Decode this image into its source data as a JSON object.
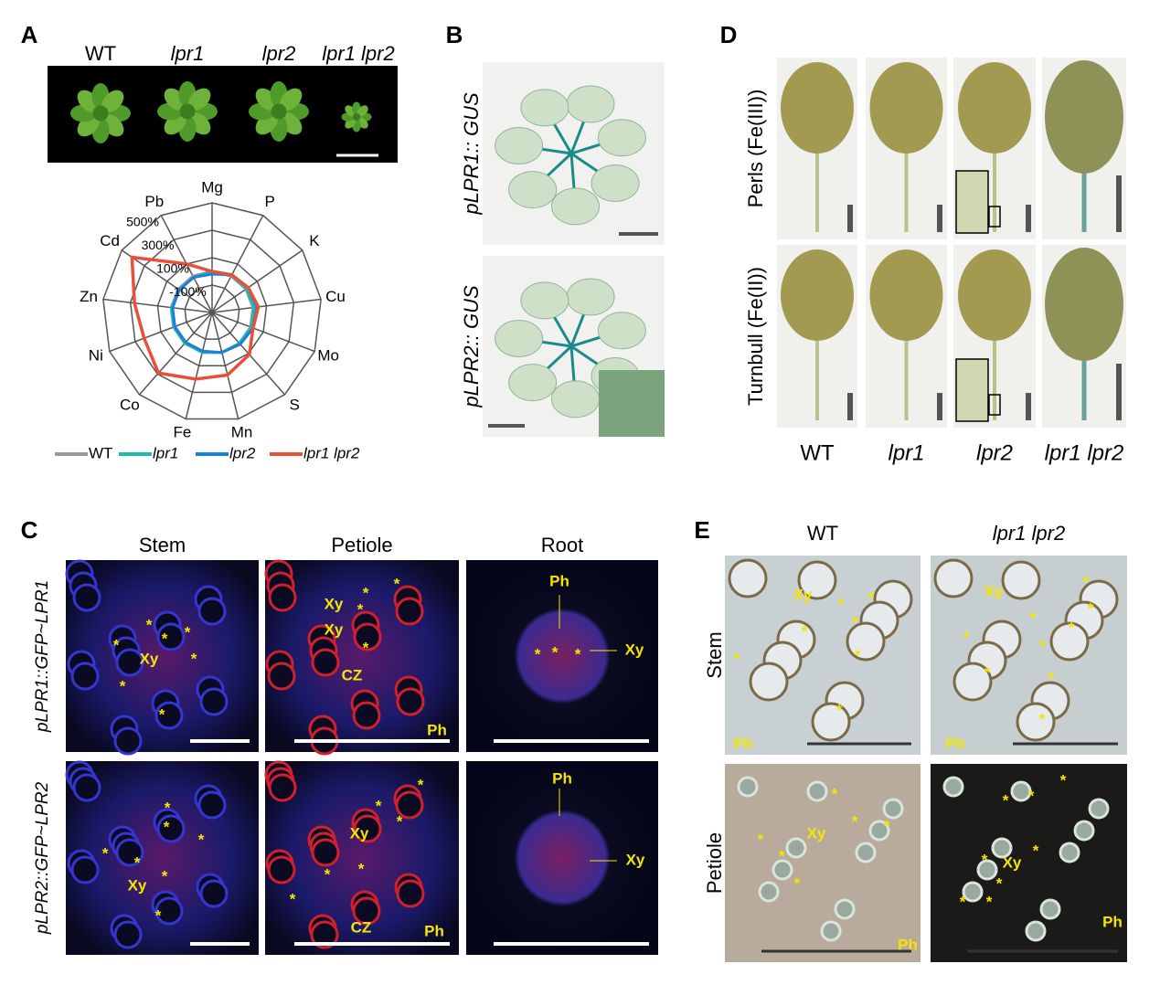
{
  "chart_data": {
    "type": "radar",
    "axes": [
      "Mg",
      "P",
      "K",
      "Cu",
      "Mo",
      "S",
      "Mn",
      "Fe",
      "Co",
      "Ni",
      "Zn",
      "Cd",
      "Pb"
    ],
    "rlim": [
      -300,
      500
    ],
    "rticks": [
      {
        "value": -100,
        "label": "-100%"
      },
      {
        "value": 100,
        "label": "100%"
      },
      {
        "value": 300,
        "label": "300%"
      },
      {
        "value": 500,
        "label": "500%"
      }
    ],
    "series": [
      {
        "name": "WT",
        "color": "#999999",
        "values": [
          0,
          0,
          0,
          0,
          0,
          0,
          0,
          0,
          0,
          0,
          0,
          0,
          0
        ]
      },
      {
        "name": "lpr1",
        "color": "#1fb8b0",
        "values": [
          0,
          5,
          5,
          10,
          5,
          0,
          0,
          0,
          0,
          0,
          0,
          -10,
          -10
        ]
      },
      {
        "name": "lpr2",
        "color": "#1e7fd8",
        "values": [
          -20,
          10,
          20,
          30,
          20,
          10,
          0,
          -10,
          -10,
          -10,
          -10,
          -10,
          -10
        ]
      },
      {
        "name": "lpr1 lpr2",
        "color": "#e8503a",
        "values": [
          0,
          10,
          20,
          40,
          20,
          110,
          170,
          200,
          290,
          230,
          270,
          410,
          100
        ]
      }
    ]
  },
  "panels": {
    "A": {
      "letter": "A",
      "genotypes": [
        "WT",
        "lpr1",
        "lpr2",
        "lpr1 lpr2"
      ]
    },
    "B": {
      "letter": "B",
      "rows": [
        "pLPR1:: GUS",
        "pLPR2:: GUS"
      ]
    },
    "C": {
      "letter": "C",
      "columns": [
        "Stem",
        "Petiole",
        "Root"
      ],
      "rows": [
        "pLPR1::GFP~LPR1",
        "pLPR2::GFP~LPR2"
      ],
      "images": [
        [
          "*",
          "*",
          "*",
          "*",
          "*",
          "Xy",
          "*",
          "*"
        ],
        [
          "*",
          "*",
          "Xy",
          "*",
          "Xy",
          "*",
          "CZ",
          "Ph"
        ],
        [
          "Ph",
          "*",
          "*",
          "*",
          "Xy"
        ],
        [
          "*",
          "*",
          "*",
          "*",
          "*",
          "*",
          "Xy",
          "*"
        ],
        [
          "*",
          "*",
          "Xy",
          "*",
          "*",
          "*",
          "CZ",
          "Ph",
          "*"
        ],
        [
          "Ph",
          "Xy"
        ]
      ]
    },
    "D": {
      "letter": "D",
      "rows": [
        "Perls (Fe(III))",
        "Turnbull (Fe(II))"
      ],
      "columns": [
        "WT",
        "lpr1",
        "lpr2",
        "lpr1 lpr2"
      ]
    },
    "E": {
      "letter": "E",
      "columns": [
        "WT",
        "lpr1 lpr2"
      ],
      "rows": [
        "Stem",
        "Petiole"
      ],
      "images": [
        [
          "Xy",
          "*",
          "*",
          "*",
          "*",
          "*",
          "*",
          "*",
          "Ph"
        ],
        [
          "Xy",
          "*",
          "*",
          "*",
          "*",
          "*",
          "*",
          "*",
          "*",
          "*",
          "Ph"
        ],
        [
          "*",
          "*",
          "*",
          "*",
          "Xy",
          "*",
          "*",
          "Ph"
        ],
        [
          "*",
          "*",
          "*",
          "*",
          "*",
          "Xy",
          "*",
          "*",
          "*",
          "Ph"
        ]
      ]
    }
  }
}
